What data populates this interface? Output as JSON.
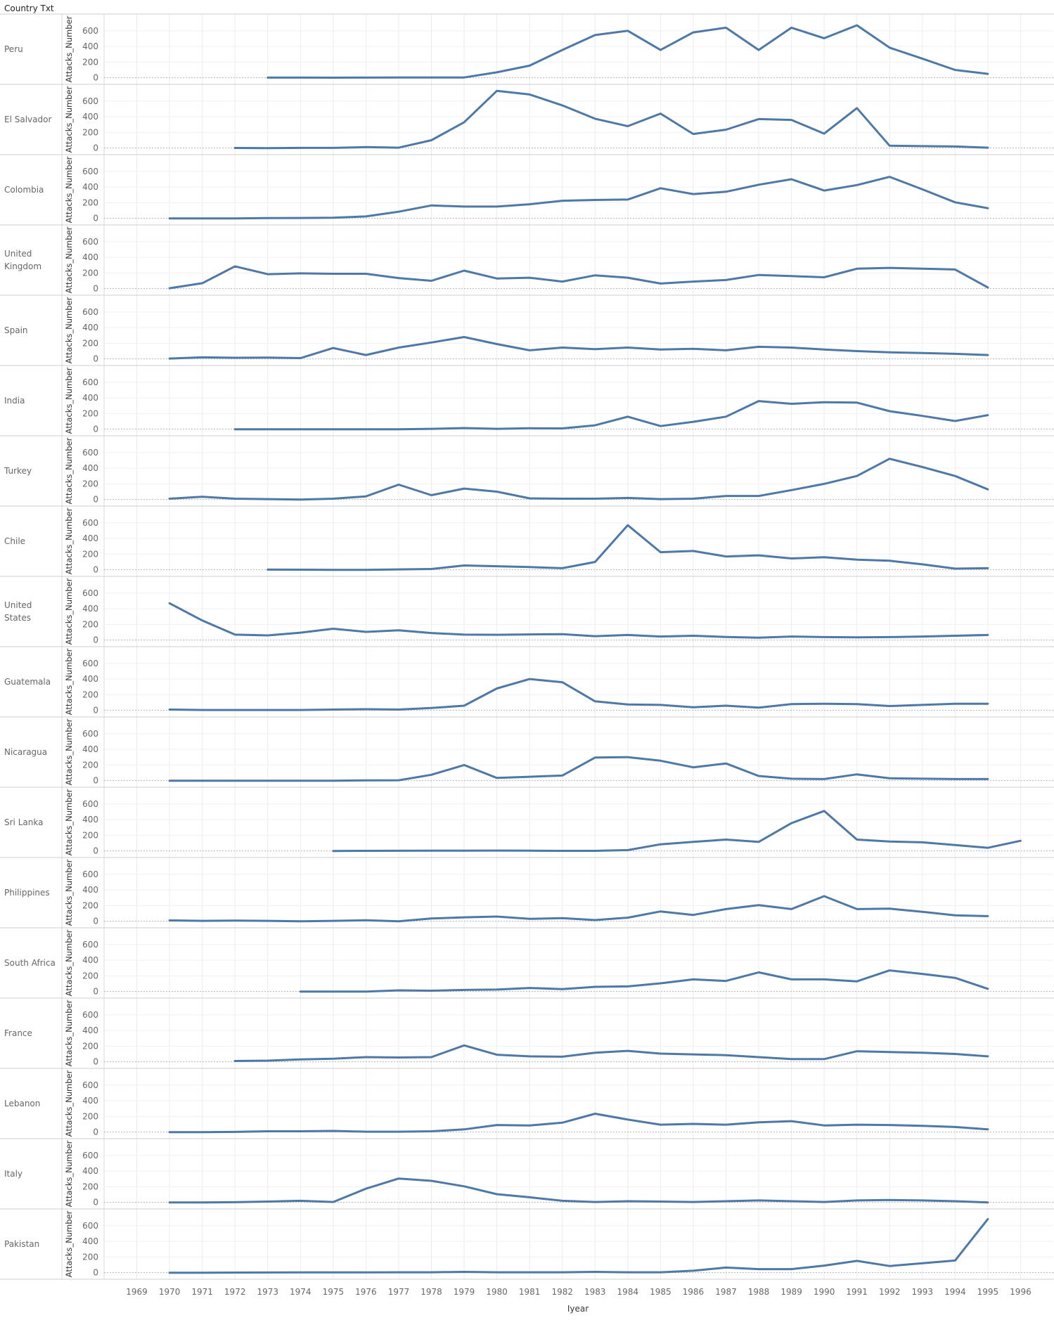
{
  "chart_data": {
    "type": "line",
    "header_title": "Country Txt",
    "xlabel": "Iyear",
    "ylabel": "Attacks_Number",
    "x_ticks": [
      1969,
      1970,
      1971,
      1972,
      1973,
      1974,
      1975,
      1976,
      1977,
      1978,
      1979,
      1980,
      1981,
      1982,
      1983,
      1984,
      1985,
      1986,
      1987,
      1988,
      1989,
      1990,
      1991,
      1992,
      1993,
      1994,
      1995,
      1996
    ],
    "xlim": [
      1968,
      1997
    ],
    "y_ticks": [
      0,
      200,
      400,
      600
    ],
    "ylim": [
      -30,
      760
    ],
    "line_color": "#4e79a7",
    "rows": [
      {
        "name": "Peru",
        "label_lines": [
          "Peru"
        ],
        "start": 1973,
        "values": [
          2,
          2,
          1,
          2,
          4,
          3,
          4,
          70,
          155,
          355,
          545,
          600,
          355,
          580,
          640,
          355,
          640,
          505,
          670,
          385,
          245,
          100,
          50
        ]
      },
      {
        "name": "El Salvador",
        "label_lines": [
          "El Salvador"
        ],
        "start": 1972,
        "values": [
          1,
          0,
          2,
          2,
          12,
          5,
          100,
          330,
          730,
          685,
          545,
          375,
          280,
          440,
          180,
          235,
          370,
          360,
          185,
          510,
          30,
          25,
          20,
          5
        ]
      },
      {
        "name": "Colombia",
        "label_lines": [
          "Colombia"
        ],
        "start": 1970,
        "values": [
          0,
          0,
          0,
          4,
          5,
          8,
          25,
          85,
          165,
          150,
          150,
          180,
          225,
          235,
          240,
          385,
          310,
          340,
          430,
          500,
          355,
          425,
          530,
          370,
          205,
          130
        ]
      },
      {
        "name": "United Kingdom",
        "label_lines": [
          "United",
          "Kingdom"
        ],
        "start": 1970,
        "values": [
          5,
          70,
          285,
          185,
          195,
          190,
          190,
          135,
          100,
          230,
          130,
          140,
          90,
          170,
          140,
          65,
          90,
          110,
          175,
          160,
          145,
          255,
          265,
          255,
          245,
          15
        ]
      },
      {
        "name": "Spain",
        "label_lines": [
          "Spain"
        ],
        "start": 1970,
        "values": [
          5,
          20,
          15,
          18,
          10,
          140,
          50,
          145,
          210,
          280,
          190,
          110,
          145,
          125,
          145,
          120,
          130,
          110,
          155,
          145,
          120,
          100,
          85,
          75,
          65,
          50
        ]
      },
      {
        "name": "India",
        "label_lines": [
          "India"
        ],
        "start": 1972,
        "values": [
          0,
          0,
          0,
          0,
          0,
          0,
          5,
          15,
          5,
          12,
          10,
          50,
          160,
          40,
          95,
          160,
          360,
          325,
          345,
          340,
          230,
          170,
          105,
          180
        ]
      },
      {
        "name": "Turkey",
        "label_lines": [
          "Turkey"
        ],
        "start": 1970,
        "values": [
          10,
          35,
          10,
          5,
          0,
          10,
          40,
          190,
          55,
          140,
          100,
          15,
          10,
          10,
          20,
          5,
          10,
          45,
          45,
          120,
          200,
          300,
          520,
          415,
          300,
          130
        ]
      },
      {
        "name": "Chile",
        "label_lines": [
          "Chile"
        ],
        "start": 1973,
        "values": [
          2,
          1,
          0,
          0,
          5,
          10,
          55,
          45,
          35,
          20,
          100,
          570,
          225,
          240,
          170,
          185,
          145,
          160,
          130,
          115,
          70,
          15,
          20
        ]
      },
      {
        "name": "United States",
        "label_lines": [
          "United",
          "States"
        ],
        "start": 1970,
        "values": [
          470,
          250,
          70,
          60,
          95,
          145,
          105,
          125,
          90,
          70,
          68,
          72,
          75,
          50,
          65,
          45,
          55,
          40,
          30,
          45,
          38,
          35,
          38,
          45,
          55,
          65
        ]
      },
      {
        "name": "Guatemala",
        "label_lines": [
          "Guatemala"
        ],
        "start": 1970,
        "values": [
          10,
          5,
          5,
          5,
          5,
          10,
          15,
          10,
          30,
          60,
          280,
          400,
          360,
          115,
          75,
          70,
          40,
          60,
          35,
          80,
          85,
          80,
          55,
          70,
          85,
          85
        ]
      },
      {
        "name": "Nicaragua",
        "label_lines": [
          "Nicaragua"
        ],
        "start": 1970,
        "values": [
          0,
          0,
          0,
          0,
          0,
          0,
          3,
          5,
          75,
          200,
          35,
          50,
          65,
          295,
          300,
          255,
          170,
          220,
          60,
          25,
          20,
          80,
          30,
          25,
          20,
          20
        ]
      },
      {
        "name": "Sri Lanka",
        "label_lines": [
          "Sri Lanka"
        ],
        "start": 1975,
        "values": [
          0,
          1,
          2,
          3,
          4,
          5,
          3,
          1,
          1,
          10,
          85,
          115,
          145,
          115,
          355,
          510,
          145,
          120,
          110,
          75,
          40,
          130
        ]
      },
      {
        "name": "Philippines",
        "label_lines": [
          "Philippines"
        ],
        "start": 1970,
        "values": [
          10,
          5,
          8,
          5,
          0,
          5,
          12,
          0,
          35,
          50,
          60,
          30,
          40,
          15,
          45,
          125,
          80,
          155,
          205,
          155,
          320,
          155,
          160,
          120,
          75,
          65
        ]
      },
      {
        "name": "South Africa",
        "label_lines": [
          "South Africa"
        ],
        "start": 1974,
        "values": [
          0,
          0,
          0,
          15,
          10,
          20,
          25,
          45,
          30,
          60,
          65,
          105,
          155,
          135,
          245,
          155,
          155,
          130,
          270,
          225,
          175,
          35
        ]
      },
      {
        "name": "France",
        "label_lines": [
          "France"
        ],
        "start": 1972,
        "values": [
          10,
          15,
          30,
          40,
          60,
          55,
          60,
          210,
          90,
          70,
          65,
          115,
          140,
          105,
          95,
          85,
          60,
          35,
          35,
          135,
          125,
          115,
          100,
          70
        ]
      },
      {
        "name": "Lebanon",
        "label_lines": [
          "Lebanon"
        ],
        "start": 1970,
        "values": [
          0,
          0,
          2,
          10,
          10,
          15,
          5,
          5,
          10,
          35,
          90,
          85,
          120,
          235,
          160,
          95,
          105,
          95,
          125,
          140,
          85,
          95,
          90,
          80,
          65,
          35
        ]
      },
      {
        "name": "Italy",
        "label_lines": [
          "Italy"
        ],
        "start": 1970,
        "values": [
          0,
          0,
          2,
          10,
          20,
          5,
          175,
          305,
          275,
          205,
          105,
          65,
          20,
          5,
          15,
          10,
          5,
          15,
          25,
          15,
          5,
          25,
          30,
          25,
          15,
          0
        ]
      },
      {
        "name": "Pakistan",
        "label_lines": [
          "Pakistan"
        ],
        "start": 1970,
        "values": [
          0,
          0,
          1,
          2,
          3,
          3,
          4,
          5,
          5,
          10,
          5,
          5,
          5,
          10,
          5,
          5,
          25,
          65,
          45,
          45,
          90,
          150,
          85,
          120,
          155,
          685
        ]
      }
    ]
  }
}
